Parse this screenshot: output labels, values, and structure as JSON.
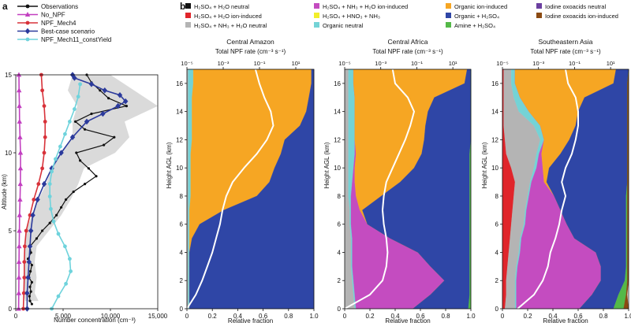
{
  "panel_a_letter": "a",
  "panel_b_letter": "b",
  "colors": {
    "observations": "#111111",
    "no_npf": "#c23fc0",
    "npf_mech4": "#d8323a",
    "best_case": "#2b3a9c",
    "npf_mech11": "#6fd3dc",
    "obs_band": "#d6d6d6",
    "h2so4_h2o_neutral": "#111111",
    "h2so4_h2o_ion": "#e0252b",
    "h2so4_nh3_h2o_neutral": "#b4b4b4",
    "h2so4_nh3_h2o_ion": "#c44cc0",
    "h2so4_hno3_nh3": "#f2ee2a",
    "organic_neutral": "#74d3d6",
    "organic_ion": "#f6a623",
    "organic_h2so4": "#2f46a6",
    "amine_h2so4": "#54b948",
    "iodine_neutral": "#6b3fa0",
    "iodine_ion": "#8b4a12",
    "profile_line": "#ffffff"
  },
  "legend_b": [
    {
      "key": "h2so4_h2o_neutral",
      "label": "H₂SO₄ + H₂O neutral"
    },
    {
      "key": "h2so4_h2o_ion",
      "label": "H₂SO₄ + H₂O ion-induced"
    },
    {
      "key": "h2so4_nh3_h2o_neutral",
      "label": "H₂SO₄ + NH₃ + H₂O neutral"
    },
    {
      "key": "h2so4_nh3_h2o_ion",
      "label": "H₂SO₄ + NH₃ + H₂O ion-induced"
    },
    {
      "key": "h2so4_hno3_nh3",
      "label": "H₂SO₄ + HNO₃ + NH₃"
    },
    {
      "key": "organic_neutral",
      "label": "Organic neutral"
    },
    {
      "key": "organic_ion",
      "label": "Organic ion-induced"
    },
    {
      "key": "organic_h2so4",
      "label": "Organic + H₂SO₄"
    },
    {
      "key": "amine_h2so4",
      "label": "Amine + H₂SO₄"
    },
    {
      "key": "iodine_neutral",
      "label": "Iodine oxoacids neutral"
    },
    {
      "key": "iodine_ion",
      "label": "Iodine oxoacids ion-induced"
    }
  ],
  "chart_data": [
    {
      "type": "line",
      "panel": "a",
      "xlabel": "Number concentration (cm⁻³)",
      "ylabel": "Altitude (km)",
      "xlim": [
        0,
        15000
      ],
      "ylim": [
        0,
        15
      ],
      "xticks": [
        0,
        5000,
        10000,
        15000
      ],
      "xtick_labels": [
        "0",
        "5,000",
        "10,000",
        "15,000"
      ],
      "yticks": [
        0,
        5,
        10,
        15
      ],
      "ytick_labels": [
        "0",
        "5",
        "10",
        "15"
      ],
      "legend_position": "top",
      "observation_band": {
        "y": [
          0.5,
          1,
          2,
          3,
          4,
          5,
          6,
          7,
          8,
          9,
          10,
          11,
          12,
          13,
          14,
          15
        ],
        "lo": [
          1000,
          800,
          800,
          900,
          900,
          1100,
          1700,
          2400,
          3200,
          3800,
          4800,
          6000,
          6000,
          6500,
          5500,
          6000
        ],
        "hi": [
          2400,
          2000,
          2200,
          2000,
          2200,
          3500,
          4800,
          5800,
          6600,
          7200,
          10500,
          12000,
          11500,
          15000,
          12500,
          10000
        ]
      },
      "series": [
        {
          "name": "Observations",
          "key": "observations",
          "marker": "circle",
          "x": [
            1700,
            1500,
            1450,
            1600,
            1500,
            1700,
            1400,
            1550,
            1700,
            1300,
            1600,
            1500,
            2200,
            2800,
            3600,
            4300,
            4800,
            5300,
            6100,
            7300,
            8500,
            7700,
            6800,
            6400,
            9300,
            10400,
            7300,
            6300,
            8000,
            11700,
            9800,
            8900,
            8000,
            7500
          ],
          "y": [
            0.3,
            0.5,
            0.8,
            1.1,
            1.4,
            1.7,
            2.0,
            2.4,
            2.8,
            3.2,
            3.6,
            4.0,
            4.5,
            5.0,
            5.5,
            6.0,
            6.5,
            7.0,
            7.5,
            8.0,
            8.5,
            9.0,
            9.5,
            10.0,
            10.5,
            11.0,
            11.5,
            12.0,
            12.5,
            13.0,
            13.5,
            14.0,
            14.5,
            15.0
          ]
        },
        {
          "name": "No_NPF",
          "key": "no_npf",
          "marker": "triangle",
          "x": [
            300,
            320,
            330,
            340,
            360,
            380,
            400,
            450,
            480,
            500,
            500,
            450,
            400,
            380,
            350,
            330
          ],
          "y": [
            0,
            1,
            2,
            3,
            4,
            5,
            6,
            7,
            8,
            9,
            10,
            11,
            12,
            13,
            14,
            15
          ]
        },
        {
          "name": "NPF_Mech4",
          "key": "npf_mech4",
          "marker": "circle",
          "x": [
            800,
            850,
            900,
            900,
            950,
            1100,
            1500,
            1900,
            2400,
            2800,
            3000,
            3100,
            3100,
            3000,
            2800,
            2700
          ],
          "y": [
            0,
            1,
            2,
            3,
            4,
            5,
            6,
            7,
            8,
            9,
            10,
            11,
            12,
            13,
            14,
            15
          ]
        },
        {
          "name": "Best-case scenario",
          "key": "best_case",
          "marker": "diamond",
          "x": [
            1200,
            1200,
            1300,
            1400,
            1500,
            1600,
            1800,
            2300,
            3000,
            3800,
            4800,
            6000,
            7500,
            9200,
            10800,
            11600,
            11000,
            9400,
            8000,
            6200,
            6000
          ],
          "y": [
            0,
            1,
            2,
            3,
            4,
            5,
            6,
            7,
            8,
            9,
            10,
            11,
            12,
            12.5,
            13,
            13.3,
            13.7,
            14,
            14.4,
            14.8,
            15
          ]
        },
        {
          "name": "NPF_Mech11_constYield",
          "key": "npf_mech11",
          "marker": "circle",
          "x": [
            3800,
            4500,
            5300,
            5800,
            5700,
            5200,
            4500,
            4000,
            3700,
            3600,
            3600,
            3800,
            4200,
            4700,
            5200,
            5700,
            6200,
            6600,
            6800
          ],
          "y": [
            0,
            0.8,
            1.6,
            2.4,
            3.2,
            4.0,
            4.8,
            5.6,
            6.4,
            7.2,
            8.0,
            8.8,
            9.6,
            10.4,
            11.2,
            12.0,
            12.8,
            13.6,
            14.4
          ]
        }
      ]
    },
    {
      "type": "area",
      "panel": "b",
      "title": "Central Amazon",
      "top_axis_label": "Total NPF rate (cm⁻³ s⁻¹)",
      "top_ticks": [
        -5,
        -3,
        -1,
        1
      ],
      "top_tick_labels": [
        "10⁻⁵",
        "10⁻³",
        "10⁻¹",
        "10¹"
      ],
      "xlabel": "Relative fraction",
      "ylabel": "Height AGL (km)",
      "xlim": [
        0,
        1
      ],
      "ylim": [
        0,
        17
      ],
      "xticks": [
        0,
        0.2,
        0.4,
        0.6,
        0.8,
        1.0
      ],
      "xtick_labels": [
        "0",
        "0.2",
        "0.4",
        "0.6",
        "0.8",
        "1.0"
      ],
      "yticks": [
        0,
        2,
        4,
        6,
        8,
        10,
        12,
        14,
        16
      ],
      "ytick_labels": [
        "0",
        "2",
        "4",
        "6",
        "8",
        "10",
        "12",
        "14",
        "16"
      ],
      "heights": [
        0,
        1,
        2,
        3,
        4,
        5,
        6,
        7,
        8,
        9,
        10,
        11,
        12,
        13,
        14,
        15,
        16,
        17
      ],
      "series": [
        {
          "key": "h2so4_nh3_h2o_neutral",
          "values": [
            0.01,
            0.01,
            0.01,
            0.01,
            0.01,
            0.01,
            0.01,
            0.01,
            0.01,
            0.01,
            0.01,
            0.01,
            0.01,
            0.01,
            0.01,
            0.01,
            0.01,
            0.01
          ]
        },
        {
          "key": "organic_neutral",
          "values": [
            0.01,
            0.01,
            0.01,
            0.01,
            0.01,
            0.01,
            0.01,
            0.01,
            0.02,
            0.02,
            0.02,
            0.02,
            0.03,
            0.03,
            0.03,
            0.03,
            0.04,
            0.04
          ]
        },
        {
          "key": "organic_ion",
          "values": [
            0.0,
            0.0,
            0.0,
            0.0,
            0.0,
            0.02,
            0.08,
            0.27,
            0.52,
            0.62,
            0.66,
            0.71,
            0.73,
            0.85,
            0.9,
            0.92,
            0.93,
            0.93
          ]
        },
        {
          "key": "organic_h2so4",
          "values": [
            0.98,
            0.98,
            0.98,
            0.98,
            0.98,
            0.96,
            0.9,
            0.71,
            0.45,
            0.35,
            0.31,
            0.26,
            0.23,
            0.11,
            0.06,
            0.04,
            0.02,
            0.02
          ]
        }
      ],
      "profile_x": [
        0.0,
        0.07,
        0.12,
        0.16,
        0.2,
        0.23,
        0.26,
        0.28,
        0.31,
        0.36,
        0.45,
        0.55,
        0.63,
        0.68,
        0.66,
        0.61,
        0.57,
        0.54
      ]
    },
    {
      "type": "area",
      "panel": "b",
      "title": "Central Africa",
      "top_axis_label": "Total NPF rate (cm⁻³ s⁻¹)",
      "top_ticks": [
        -5,
        -3,
        -1,
        1
      ],
      "top_tick_labels": [
        "10⁻⁵",
        "10⁻³",
        "10⁻¹",
        "10¹"
      ],
      "xlabel": "Relative fraction",
      "ylabel": "Height AGL (km)",
      "xlim": [
        0,
        1
      ],
      "ylim": [
        0,
        17
      ],
      "xticks": [
        0,
        0.2,
        0.4,
        0.6,
        0.8,
        1.0
      ],
      "xtick_labels": [
        "0",
        "0.2",
        "0.4",
        "0.6",
        "0.8",
        "1.0"
      ],
      "yticks": [
        0,
        2,
        4,
        6,
        8,
        10,
        12,
        14,
        16
      ],
      "ytick_labels": [
        "0",
        "2",
        "4",
        "6",
        "8",
        "10",
        "12",
        "14",
        "16"
      ],
      "heights": [
        0,
        1,
        2,
        3,
        4,
        5,
        6,
        7,
        8,
        9,
        10,
        11,
        12,
        13,
        14,
        15,
        16,
        17
      ],
      "series": [
        {
          "key": "h2so4_nh3_h2o_neutral",
          "values": [
            0.08,
            0.07,
            0.06,
            0.05,
            0.05,
            0.05,
            0.04,
            0.04,
            0.03,
            0.03,
            0.03,
            0.03,
            0.03,
            0.03,
            0.03,
            0.03,
            0.03,
            0.03
          ]
        },
        {
          "key": "organic_neutral",
          "values": [
            0.01,
            0.01,
            0.01,
            0.01,
            0.01,
            0.01,
            0.01,
            0.01,
            0.02,
            0.03,
            0.04,
            0.05,
            0.05,
            0.05,
            0.05,
            0.05,
            0.04,
            0.04
          ]
        },
        {
          "key": "h2so4_nh3_h2o_ion",
          "values": [
            0.45,
            0.6,
            0.72,
            0.62,
            0.52,
            0.3,
            0.13,
            0.07,
            0.04,
            0.02,
            0.01,
            0.01,
            0.0,
            0.0,
            0.0,
            0.0,
            0.0,
            0.0
          ]
        },
        {
          "key": "organic_ion",
          "values": [
            0.0,
            0.0,
            0.0,
            0.0,
            0.0,
            0.0,
            0.0,
            0.02,
            0.2,
            0.36,
            0.47,
            0.52,
            0.55,
            0.56,
            0.58,
            0.63,
            0.88,
            0.9
          ]
        },
        {
          "key": "organic_h2so4",
          "values": [
            0.44,
            0.31,
            0.2,
            0.31,
            0.41,
            0.63,
            0.81,
            0.85,
            0.7,
            0.55,
            0.44,
            0.38,
            0.37,
            0.36,
            0.34,
            0.29,
            0.05,
            0.03
          ]
        },
        {
          "key": "amine_h2so4",
          "values": [
            0.02,
            0.01,
            0.01,
            0.01,
            0.01,
            0.01,
            0.01,
            0.01,
            0.01,
            0.01,
            0.01,
            0.01,
            0.0,
            0.0,
            0.0,
            0.0,
            0.0,
            0.0
          ]
        }
      ],
      "profile_x": [
        0.0,
        0.2,
        0.3,
        0.33,
        0.34,
        0.33,
        0.31,
        0.3,
        0.31,
        0.33,
        0.38,
        0.43,
        0.48,
        0.52,
        0.55,
        0.5,
        0.4,
        0.38
      ]
    },
    {
      "type": "area",
      "panel": "b",
      "title": "Southeastern Asia",
      "top_axis_label": "Total NPF rate (cm⁻³ s⁻¹)",
      "top_ticks": [
        -5,
        -3,
        -1,
        1
      ],
      "top_tick_labels": [
        "10⁻⁵",
        "10⁻³",
        "10⁻¹",
        "10¹"
      ],
      "xlabel": "Relative fraction",
      "ylabel": "Height AGL (km)",
      "xlim": [
        0,
        1
      ],
      "ylim": [
        0,
        17
      ],
      "xticks": [
        0,
        0.2,
        0.4,
        0.6,
        0.8,
        1.0
      ],
      "xtick_labels": [
        "0",
        "0.2",
        "0.4",
        "0.6",
        "0.8",
        "1.0"
      ],
      "yticks": [
        0,
        2,
        4,
        6,
        8,
        10,
        12,
        14,
        16
      ],
      "ytick_labels": [
        "0",
        "2",
        "4",
        "6",
        "8",
        "10",
        "12",
        "14",
        "16"
      ],
      "heights": [
        0,
        1,
        2,
        3,
        4,
        5,
        6,
        7,
        8,
        9,
        10,
        11,
        12,
        13,
        14,
        15,
        16,
        17
      ],
      "series": [
        {
          "key": "h2so4_h2o_ion",
          "values": [
            0.02,
            0.03,
            0.03,
            0.04,
            0.05,
            0.06,
            0.07,
            0.08,
            0.09,
            0.1,
            0.07,
            0.03,
            0.02,
            0.01,
            0.01,
            0.01,
            0.01,
            0.01
          ]
        },
        {
          "key": "h2so4_nh3_h2o_neutral",
          "values": [
            0.08,
            0.07,
            0.07,
            0.07,
            0.08,
            0.08,
            0.1,
            0.1,
            0.11,
            0.12,
            0.18,
            0.24,
            0.28,
            0.24,
            0.12,
            0.08,
            0.06,
            0.06
          ]
        },
        {
          "key": "organic_neutral",
          "values": [
            0.01,
            0.01,
            0.01,
            0.01,
            0.01,
            0.01,
            0.01,
            0.01,
            0.01,
            0.01,
            0.02,
            0.02,
            0.03,
            0.05,
            0.08,
            0.05,
            0.03,
            0.03
          ]
        },
        {
          "key": "h2so4_nh3_h2o_ion",
          "values": [
            0.5,
            0.6,
            0.67,
            0.66,
            0.6,
            0.42,
            0.33,
            0.27,
            0.2,
            0.1,
            0.05,
            0.02,
            0.0,
            0.0,
            0.0,
            0.0,
            0.0,
            0.0
          ]
        },
        {
          "key": "organic_ion",
          "values": [
            0.0,
            0.0,
            0.0,
            0.0,
            0.0,
            0.0,
            0.0,
            0.0,
            0.0,
            0.02,
            0.05,
            0.15,
            0.2,
            0.28,
            0.39,
            0.51,
            0.78,
            0.8
          ]
        },
        {
          "key": "organic_h2so4",
          "values": [
            0.27,
            0.21,
            0.19,
            0.2,
            0.24,
            0.41,
            0.47,
            0.52,
            0.57,
            0.64,
            0.62,
            0.53,
            0.46,
            0.41,
            0.39,
            0.34,
            0.11,
            0.1
          ]
        },
        {
          "key": "amine_h2so4",
          "values": [
            0.08,
            0.06,
            0.02,
            0.01,
            0.01,
            0.01,
            0.01,
            0.01,
            0.01,
            0.0,
            0.0,
            0.0,
            0.0,
            0.0,
            0.0,
            0.0,
            0.0,
            0.0
          ]
        },
        {
          "key": "iodine_ion",
          "values": [
            0.04,
            0.01,
            0.01,
            0.01,
            0.01,
            0.01,
            0.01,
            0.01,
            0.01,
            0.01,
            0.01,
            0.01,
            0.01,
            0.01,
            0.01,
            0.01,
            0.01,
            0.0
          ]
        }
      ],
      "profile_x": [
        0.12,
        0.25,
        0.32,
        0.36,
        0.38,
        0.42,
        0.45,
        0.47,
        0.5,
        0.47,
        0.5,
        0.55,
        0.58,
        0.6,
        0.6,
        0.58,
        0.52,
        0.5
      ]
    }
  ]
}
